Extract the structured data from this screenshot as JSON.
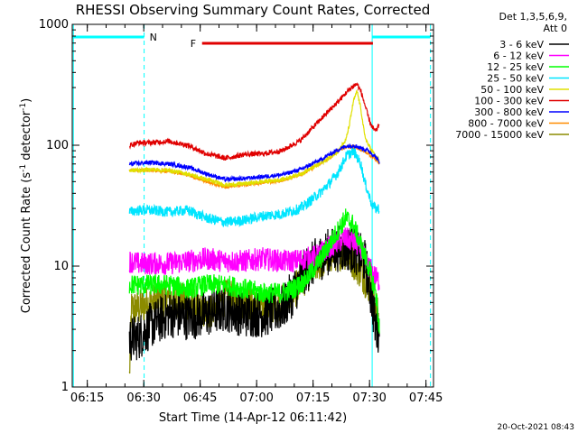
{
  "chart_data": {
    "type": "line",
    "title": "RHESSI Observing Summary Count Rates, Corrected",
    "xlabel": "Start Time (14-Apr-12 06:11:42)",
    "ylabel": "Corrected Count Rate (s-1 detector-1)",
    "ylabel_parts": {
      "main": "Corrected Count Rate (s",
      "exp1": "-1",
      "mid": " detector",
      "exp2": "-1",
      "end": ")"
    },
    "x_unit": "minutes after 06:11:42",
    "xlim": [
      -0.7,
      95.3
    ],
    "ylim": [
      1,
      1000
    ],
    "yscale": "log",
    "x_ticks": [
      {
        "value": 3.3,
        "label": "06:15"
      },
      {
        "value": 18.3,
        "label": "06:30"
      },
      {
        "value": 33.3,
        "label": "06:45"
      },
      {
        "value": 48.3,
        "label": "07:00"
      },
      {
        "value": 63.3,
        "label": "07:15"
      },
      {
        "value": 78.3,
        "label": "07:30"
      },
      {
        "value": 93.3,
        "label": "07:45"
      }
    ],
    "y_ticks": [
      {
        "value": 1,
        "label": "1"
      },
      {
        "value": 10,
        "label": "10"
      },
      {
        "value": 100,
        "label": "100"
      },
      {
        "value": 1000,
        "label": "1000"
      }
    ],
    "legend_header": [
      "Det 1,3,5,6,9,",
      "Att 0"
    ],
    "footer": "20-Oct-2021 08:43",
    "flags": {
      "night_label": "N",
      "flare_label": "F",
      "night_color": "#00ffff",
      "flare_color": "#e00000",
      "night_bar_1": [
        -0.7,
        18.4
      ],
      "night_bar_2": [
        79.0,
        94.5
      ],
      "flare_bar": [
        33.8,
        79.2
      ],
      "cyan_solid_lines": [
        -0.4,
        79.0
      ],
      "cyan_dashed_lines": [
        18.4,
        94.5
      ]
    },
    "series": [
      {
        "name": "3 - 6 keV",
        "color": "#000000",
        "x": [
          14.5,
          15.0,
          17.0,
          20.0,
          25.0,
          30.0,
          35.0,
          40.0,
          45.0,
          50.0,
          55.0,
          58.0,
          61.0,
          64.0,
          67.0,
          70.0,
          73.0,
          75.0,
          77.0,
          78.0,
          79.0,
          80.0,
          80.9
        ],
        "y": [
          2.5,
          2.5,
          2.6,
          3.2,
          4.0,
          3.8,
          4.0,
          4.5,
          4.0,
          4.0,
          4.5,
          6.0,
          9.0,
          11.0,
          13.0,
          14.0,
          14.0,
          13.0,
          11.0,
          8.0,
          5.0,
          3.0,
          3.0
        ]
      },
      {
        "name": "6 - 12 keV",
        "color": "#ff00ff",
        "x": [
          14.5,
          17.0,
          20.0,
          25.0,
          30.0,
          35.0,
          40.0,
          45.0,
          50.0,
          55.0,
          58.0,
          61.0,
          64.0,
          67.0,
          70.0,
          72.0,
          74.0,
          76.0,
          78.0,
          80.0,
          80.9
        ],
        "y": [
          11.0,
          10.5,
          10.5,
          10.5,
          11.0,
          11.5,
          11.0,
          11.0,
          11.5,
          11.0,
          11.0,
          11.5,
          12.0,
          14.0,
          16.0,
          17.0,
          16.0,
          14.0,
          10.0,
          8.0,
          7.5
        ]
      },
      {
        "name": "12 - 25 keV",
        "color": "#00ff00",
        "x": [
          14.5,
          17.0,
          20.0,
          25.0,
          30.0,
          35.0,
          40.0,
          45.0,
          50.0,
          55.0,
          58.0,
          61.0,
          64.0,
          67.0,
          70.0,
          72.0,
          74.0,
          76.0,
          78.0,
          80.0,
          80.9
        ],
        "y": [
          7.0,
          7.0,
          7.0,
          7.0,
          6.5,
          7.0,
          7.0,
          6.5,
          6.0,
          6.0,
          6.5,
          7.5,
          10.0,
          14.0,
          20.0,
          25.0,
          22.0,
          15.0,
          10.0,
          6.0,
          3.0
        ]
      },
      {
        "name": "25 - 50 keV",
        "color": "#00e5ff",
        "x": [
          14.5,
          17.0,
          20.0,
          25.0,
          30.0,
          35.0,
          40.0,
          45.0,
          50.0,
          55.0,
          60.0,
          65.0,
          68.0,
          70.0,
          72.0,
          74.0,
          76.0,
          77.0,
          78.0,
          79.0,
          80.0,
          80.9
        ],
        "y": [
          28.0,
          29.0,
          29.0,
          28.0,
          29.0,
          25.0,
          23.0,
          24.0,
          26.0,
          27.0,
          30.0,
          40.0,
          50.0,
          60.0,
          80.0,
          90.0,
          70.0,
          50.0,
          40.0,
          32.0,
          30.0,
          30.0
        ]
      },
      {
        "name": "50 - 100 keV",
        "color": "#e0e000",
        "x": [
          14.5,
          17.0,
          20.0,
          25.0,
          30.0,
          35.0,
          40.0,
          45.0,
          50.0,
          55.0,
          60.0,
          65.0,
          68.0,
          70.0,
          72.0,
          73.0,
          74.0,
          75.0,
          76.0,
          77.0,
          78.0,
          79.0,
          80.0,
          80.9
        ],
        "y": [
          62.0,
          62.0,
          63.0,
          62.0,
          58.0,
          52.0,
          47.0,
          48.0,
          50.0,
          52.0,
          58.0,
          70.0,
          80.0,
          90.0,
          110.0,
          150.0,
          230.0,
          280.0,
          200.0,
          120.0,
          100.0,
          90.0,
          80.0,
          75.0
        ]
      },
      {
        "name": "100 - 300 keV",
        "color": "#e00000",
        "x": [
          14.5,
          17.0,
          20.0,
          25.0,
          30.0,
          35.0,
          40.0,
          45.0,
          50.0,
          55.0,
          60.0,
          65.0,
          68.0,
          70.0,
          72.0,
          74.0,
          75.0,
          76.0,
          77.0,
          78.0,
          79.0,
          80.0,
          80.9
        ],
        "y": [
          100.0,
          105.0,
          105.0,
          108.0,
          100.0,
          85.0,
          78.0,
          84.0,
          85.0,
          90.0,
          110.0,
          160.0,
          200.0,
          230.0,
          270.0,
          310.0,
          320.0,
          280.0,
          220.0,
          170.0,
          140.0,
          130.0,
          150.0
        ]
      },
      {
        "name": "300 - 800 keV",
        "color": "#0000ff",
        "x": [
          14.5,
          17.0,
          20.0,
          25.0,
          30.0,
          35.0,
          40.0,
          45.0,
          50.0,
          55.0,
          60.0,
          65.0,
          68.0,
          70.0,
          72.0,
          74.0,
          76.0,
          78.0,
          80.0,
          80.9
        ],
        "y": [
          70.0,
          71.0,
          72.0,
          70.0,
          66.0,
          58.0,
          52.0,
          53.0,
          55.0,
          57.0,
          63.0,
          75.0,
          85.0,
          92.0,
          98.0,
          100.0,
          95.0,
          90.0,
          80.0,
          72.0
        ]
      },
      {
        "name": "800 - 7000 keV",
        "color": "#ff8c00",
        "x": [
          14.5,
          17.0,
          20.0,
          25.0,
          30.0,
          35.0,
          40.0,
          45.0,
          50.0,
          55.0,
          60.0,
          65.0,
          68.0,
          70.0,
          72.0,
          74.0,
          76.0,
          78.0,
          80.0,
          80.9
        ],
        "y": [
          62.0,
          62.0,
          62.0,
          61.0,
          57.0,
          50.0,
          45.0,
          47.0,
          49.0,
          51.0,
          57.0,
          70.0,
          80.0,
          90.0,
          96.0,
          98.0,
          92.0,
          85.0,
          76.0,
          70.0
        ]
      },
      {
        "name": "7000 - 15000 keV",
        "color": "#8b8b00",
        "x": [
          14.5,
          15.0,
          17.0,
          20.0,
          25.0,
          30.0,
          35.0,
          40.0,
          45.0,
          50.0,
          55.0,
          58.0,
          61.0,
          64.0,
          67.0,
          70.0,
          72.0,
          74.0,
          76.0,
          78.0,
          80.0,
          80.9
        ],
        "y": [
          1.2,
          4.5,
          4.5,
          5.0,
          5.5,
          5.0,
          4.0,
          5.5,
          5.0,
          4.5,
          5.0,
          6.0,
          8.0,
          10.0,
          12.0,
          13.0,
          13.0,
          11.0,
          9.0,
          7.0,
          5.0,
          3.0
        ]
      }
    ]
  }
}
